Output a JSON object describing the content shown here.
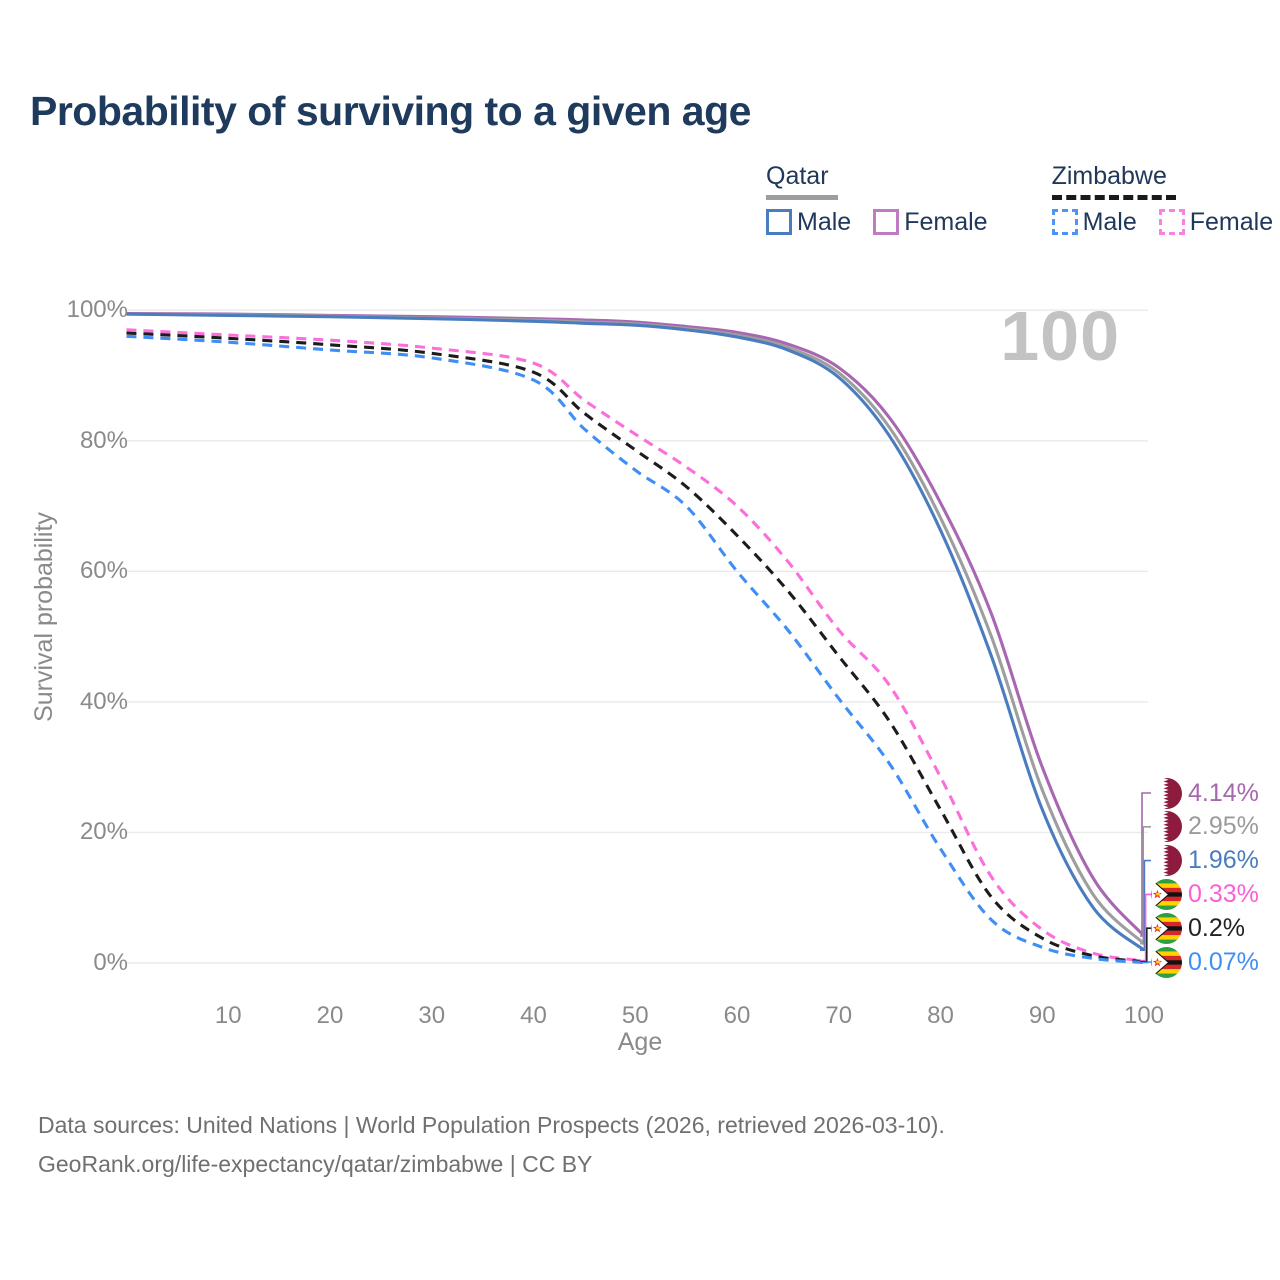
{
  "header": {
    "title": "Probability of surviving to a given age"
  },
  "legend": {
    "groups": [
      {
        "country": "Qatar",
        "line_style": "solid",
        "underline_color": "#9e9e9e",
        "entries": [
          {
            "label": "Male",
            "color": "#4a7dbf"
          },
          {
            "label": "Female",
            "color": "#bf7cc0"
          }
        ]
      },
      {
        "country": "Zimbabwe",
        "line_style": "dashed",
        "underline_color": "#1a1a1a",
        "entries": [
          {
            "label": "Male",
            "color": "#4d94f7"
          },
          {
            "label": "Female",
            "color": "#fc80e0"
          }
        ]
      }
    ]
  },
  "chart_data": {
    "type": "line",
    "title": "Probability of surviving to a given age",
    "xlabel": "Age",
    "ylabel": "Survival probability",
    "xlim": [
      0,
      100
    ],
    "ylim": [
      0,
      100
    ],
    "grid": "horizontal",
    "age_indicator": "100",
    "x_ticks": [
      10,
      20,
      30,
      40,
      50,
      60,
      70,
      80,
      90,
      100
    ],
    "y_ticks": [
      {
        "v": 0,
        "label": "0%"
      },
      {
        "v": 20,
        "label": "20%"
      },
      {
        "v": 40,
        "label": "40%"
      },
      {
        "v": 60,
        "label": "60%"
      },
      {
        "v": 80,
        "label": "80%"
      },
      {
        "v": 100,
        "label": "100%"
      }
    ],
    "x": [
      0,
      10,
      20,
      30,
      40,
      45,
      50,
      55,
      60,
      65,
      70,
      75,
      80,
      85,
      90,
      95,
      100
    ],
    "series": [
      {
        "name": "Qatar Female",
        "country": "Qatar",
        "sex": "Female",
        "line": "solid",
        "color": "#a867b0",
        "values": [
          99.5,
          99.4,
          99.2,
          99.0,
          98.7,
          98.5,
          98.2,
          97.5,
          96.6,
          94.8,
          91.2,
          83.5,
          70.5,
          53.5,
          30.0,
          13.0,
          4.14
        ],
        "end_label": {
          "text": "4.14%",
          "color": "#a767ae",
          "flag": "qatar"
        }
      },
      {
        "name": "Qatar Both sexes",
        "country": "Qatar",
        "sex": "Both",
        "line": "solid",
        "color": "#9e9e9e",
        "values": [
          99.4,
          99.3,
          99.1,
          98.8,
          98.5,
          98.2,
          97.9,
          97.2,
          96.2,
          94.3,
          90.4,
          82.0,
          68.2,
          50.0,
          26.5,
          10.5,
          2.95
        ],
        "end_label": {
          "text": "2.95%",
          "color": "#9b9b9b",
          "flag": "qatar"
        }
      },
      {
        "name": "Qatar Male",
        "country": "Qatar",
        "sex": "Male",
        "line": "solid",
        "color": "#4a7dbf",
        "values": [
          99.4,
          99.2,
          99.0,
          98.7,
          98.3,
          98.0,
          97.7,
          97.0,
          95.9,
          93.9,
          89.7,
          80.7,
          66.3,
          47.0,
          23.5,
          8.5,
          1.96
        ],
        "end_label": {
          "text": "1.96%",
          "color": "#4a7dbf",
          "flag": "qatar"
        }
      },
      {
        "name": "Zimbabwe Female",
        "country": "Zimbabwe",
        "sex": "Female",
        "line": "dashed",
        "color": "#fb6fdc",
        "values": [
          97.0,
          96.2,
          95.4,
          94.2,
          91.9,
          86.2,
          81.0,
          76.0,
          70.0,
          61.5,
          51.0,
          42.5,
          28.5,
          13.2,
          5.1,
          1.5,
          0.33
        ],
        "end_label": {
          "text": "0.33%",
          "color": "#fb5fd7",
          "flag": "zimbabwe"
        }
      },
      {
        "name": "Zimbabwe Both sexes",
        "country": "Zimbabwe",
        "sex": "Both",
        "line": "dashed",
        "color": "#1c1c1c",
        "values": [
          96.5,
          95.7,
          94.7,
          93.4,
          90.5,
          84.2,
          78.6,
          73.0,
          65.5,
          57.0,
          47.0,
          37.0,
          23.5,
          10.1,
          3.8,
          1.1,
          0.2
        ],
        "end_label": {
          "text": "0.2%",
          "color": "#222222",
          "flag": "zimbabwe"
        }
      },
      {
        "name": "Zimbabwe Male",
        "country": "Zimbabwe",
        "sex": "Male",
        "line": "dashed",
        "color": "#3f8ef5",
        "values": [
          96.0,
          95.1,
          93.9,
          92.7,
          89.3,
          81.8,
          75.5,
          70.0,
          60.0,
          51.0,
          40.5,
          30.5,
          17.5,
          6.6,
          2.4,
          0.7,
          0.07
        ],
        "end_label": {
          "text": "0.07%",
          "color": "#3f8ef5",
          "flag": "zimbabwe"
        }
      }
    ]
  },
  "footer": {
    "line1": "Data sources: United Nations | World Population Prospects (2026, retrieved 2026-03-10).",
    "line2": "GeoRank.org/life-expectancy/qatar/zimbabwe | CC BY"
  }
}
